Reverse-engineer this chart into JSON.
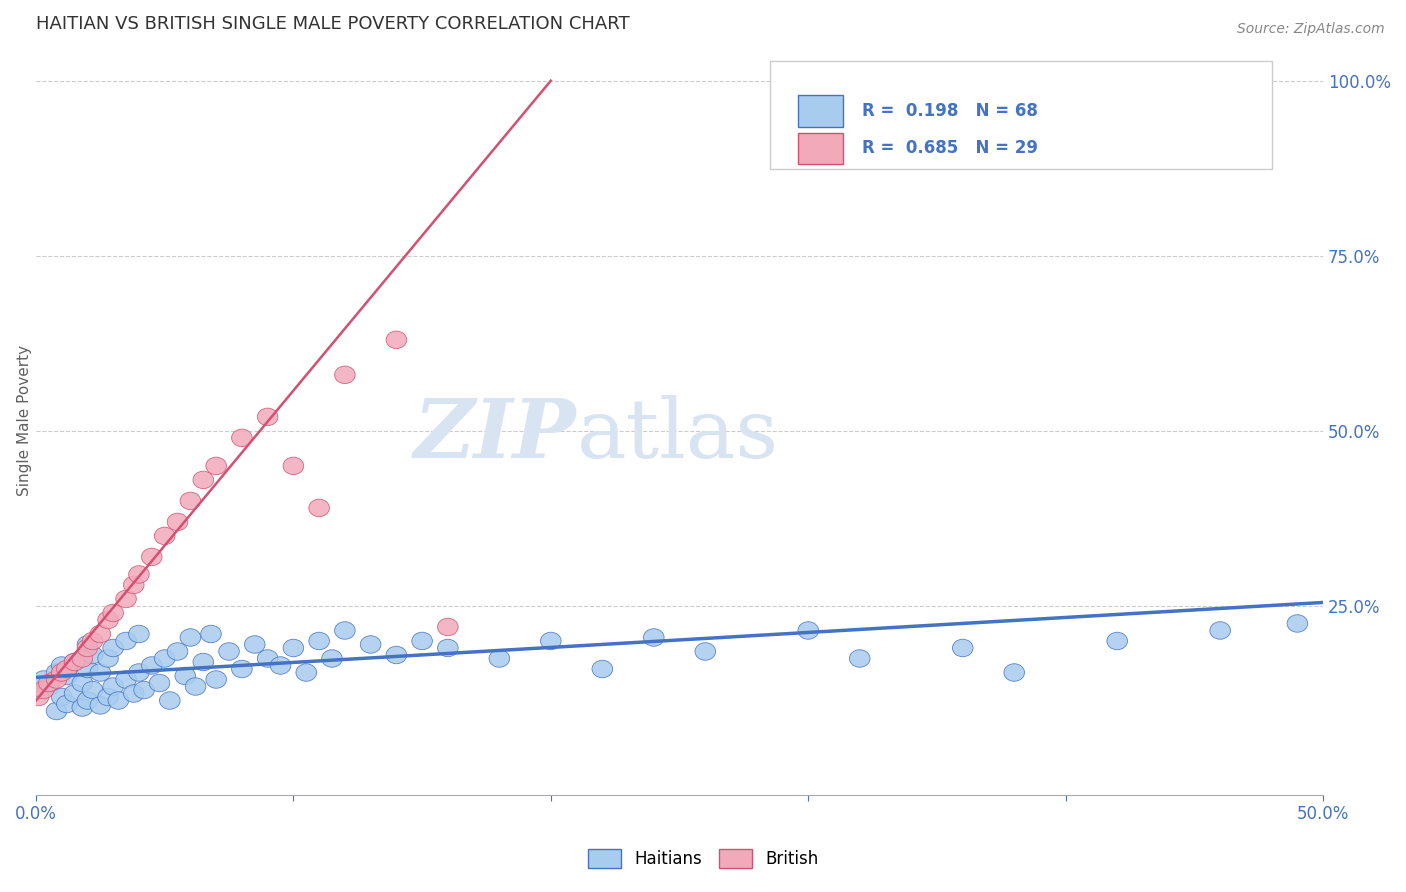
{
  "title": "HAITIAN VS BRITISH SINGLE MALE POVERTY CORRELATION CHART",
  "source_text": "Source: ZipAtlas.com",
  "ylabel": "Single Male Poverty",
  "xlim": [
    0.0,
    0.5
  ],
  "ylim": [
    -0.02,
    1.05
  ],
  "ytick_labels_right": [
    "25.0%",
    "50.0%",
    "75.0%",
    "100.0%"
  ],
  "ytick_vals_right": [
    0.25,
    0.5,
    0.75,
    1.0
  ],
  "blue_R": 0.198,
  "blue_N": 68,
  "pink_R": 0.685,
  "pink_N": 29,
  "blue_color": "#A8CCEE",
  "pink_color": "#F2AABB",
  "blue_line_color": "#4472C4",
  "pink_line_color": "#D45070",
  "title_color": "#333333",
  "axis_label_color": "#4472C4",
  "legend_R_color": "#4472C4",
  "watermark_color": "#D8E4F2",
  "background_color": "#FFFFFF",
  "blue_scatter_x": [
    0.001,
    0.003,
    0.005,
    0.008,
    0.008,
    0.01,
    0.01,
    0.012,
    0.012,
    0.015,
    0.015,
    0.018,
    0.018,
    0.02,
    0.02,
    0.02,
    0.022,
    0.022,
    0.025,
    0.025,
    0.028,
    0.028,
    0.03,
    0.03,
    0.032,
    0.035,
    0.035,
    0.038,
    0.04,
    0.04,
    0.042,
    0.045,
    0.048,
    0.05,
    0.052,
    0.055,
    0.058,
    0.06,
    0.062,
    0.065,
    0.068,
    0.07,
    0.075,
    0.08,
    0.085,
    0.09,
    0.095,
    0.1,
    0.105,
    0.11,
    0.115,
    0.12,
    0.13,
    0.14,
    0.15,
    0.16,
    0.18,
    0.2,
    0.22,
    0.24,
    0.26,
    0.3,
    0.32,
    0.36,
    0.38,
    0.42,
    0.46,
    0.49
  ],
  "blue_scatter_y": [
    0.13,
    0.145,
    0.135,
    0.1,
    0.155,
    0.12,
    0.165,
    0.11,
    0.15,
    0.125,
    0.17,
    0.105,
    0.14,
    0.115,
    0.16,
    0.195,
    0.13,
    0.18,
    0.108,
    0.155,
    0.12,
    0.175,
    0.135,
    0.19,
    0.115,
    0.145,
    0.2,
    0.125,
    0.155,
    0.21,
    0.13,
    0.165,
    0.14,
    0.175,
    0.115,
    0.185,
    0.15,
    0.205,
    0.135,
    0.17,
    0.21,
    0.145,
    0.185,
    0.16,
    0.195,
    0.175,
    0.165,
    0.19,
    0.155,
    0.2,
    0.175,
    0.215,
    0.195,
    0.18,
    0.2,
    0.19,
    0.175,
    0.2,
    0.16,
    0.205,
    0.185,
    0.215,
    0.175,
    0.19,
    0.155,
    0.2,
    0.215,
    0.225
  ],
  "pink_scatter_x": [
    0.001,
    0.003,
    0.005,
    0.008,
    0.01,
    0.012,
    0.015,
    0.018,
    0.02,
    0.022,
    0.025,
    0.028,
    0.03,
    0.035,
    0.038,
    0.04,
    0.045,
    0.05,
    0.055,
    0.06,
    0.065,
    0.07,
    0.08,
    0.09,
    0.1,
    0.11,
    0.12,
    0.14,
    0.16
  ],
  "pink_scatter_y": [
    0.12,
    0.13,
    0.14,
    0.145,
    0.155,
    0.16,
    0.17,
    0.175,
    0.19,
    0.2,
    0.21,
    0.23,
    0.24,
    0.26,
    0.28,
    0.295,
    0.32,
    0.35,
    0.37,
    0.4,
    0.43,
    0.45,
    0.49,
    0.52,
    0.45,
    0.39,
    0.58,
    0.63,
    0.22
  ],
  "pink_line_x0": 0.0,
  "pink_line_y0": 0.115,
  "pink_line_x1": 0.2,
  "pink_line_y1": 1.0,
  "blue_line_x0": 0.0,
  "blue_line_y0": 0.148,
  "blue_line_x1": 0.5,
  "blue_line_y1": 0.255
}
